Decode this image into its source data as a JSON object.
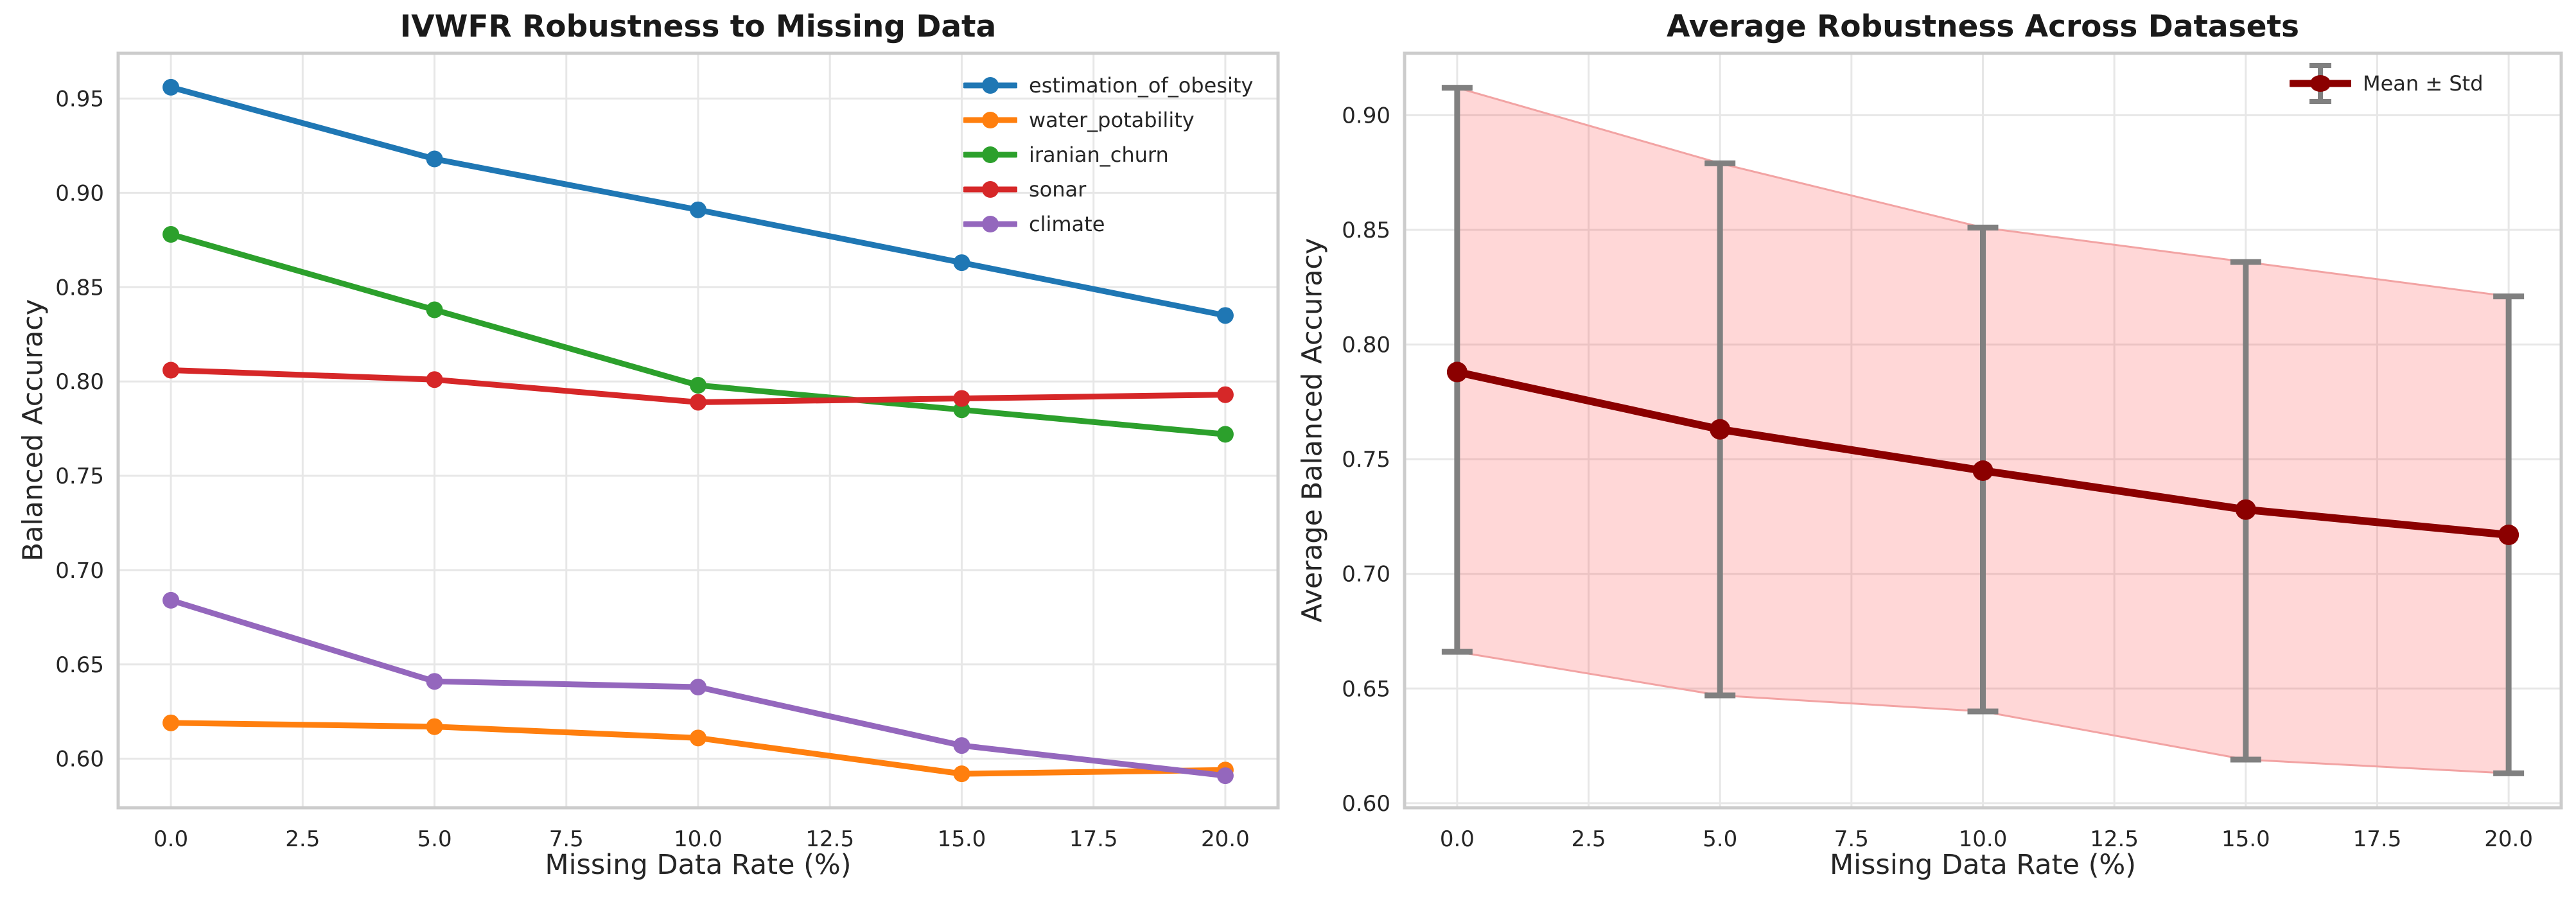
{
  "figure": {
    "background": "#ffffff",
    "theme": {
      "grid_color": "#e7e7e7",
      "spine_color": "#cccccc",
      "text_color": "#262626"
    }
  },
  "chart_data": [
    {
      "type": "line",
      "title": "IVWFR Robustness to Missing Data",
      "xlabel": "Missing Data Rate (%)",
      "ylabel": "Balanced Accuracy",
      "x": [
        0,
        5,
        10,
        15,
        20
      ],
      "xlim": [
        -1,
        21
      ],
      "ylim": [
        0.574,
        0.974
      ],
      "grid": true,
      "legend_position": "upper-right",
      "xticks": {
        "values": [
          0,
          2.5,
          5,
          7.5,
          10,
          12.5,
          15,
          17.5,
          20
        ],
        "labels": [
          "0.0",
          "2.5",
          "5.0",
          "7.5",
          "10.0",
          "12.5",
          "15.0",
          "17.5",
          "20.0"
        ]
      },
      "yticks": {
        "values": [
          0.6,
          0.65,
          0.7,
          0.75,
          0.8,
          0.85,
          0.9,
          0.95
        ],
        "labels": [
          "0.60",
          "0.65",
          "0.70",
          "0.75",
          "0.80",
          "0.85",
          "0.90",
          "0.95"
        ]
      },
      "series": [
        {
          "name": "estimation_of_obesity",
          "color": "#1f77b4",
          "values": [
            0.956,
            0.918,
            0.891,
            0.863,
            0.835
          ]
        },
        {
          "name": "water_potability",
          "color": "#ff7f0e",
          "values": [
            0.619,
            0.617,
            0.611,
            0.592,
            0.594
          ]
        },
        {
          "name": "iranian_churn",
          "color": "#2ca02c",
          "values": [
            0.878,
            0.838,
            0.798,
            0.785,
            0.772
          ]
        },
        {
          "name": "sonar",
          "color": "#d62728",
          "values": [
            0.806,
            0.801,
            0.789,
            0.791,
            0.793
          ]
        },
        {
          "name": "climate",
          "color": "#9467bd",
          "values": [
            0.684,
            0.641,
            0.638,
            0.607,
            0.591
          ]
        }
      ]
    },
    {
      "type": "line",
      "title": "Average Robustness Across Datasets",
      "xlabel": "Missing Data Rate (%)",
      "ylabel": "Average Balanced Accuracy",
      "x": [
        0,
        5,
        10,
        15,
        20
      ],
      "xlim": [
        -1,
        21
      ],
      "ylim": [
        0.598,
        0.927
      ],
      "grid": true,
      "legend_position": "upper-right",
      "xticks": {
        "values": [
          0,
          2.5,
          5,
          7.5,
          10,
          12.5,
          15,
          17.5,
          20
        ],
        "labels": [
          "0.0",
          "2.5",
          "5.0",
          "7.5",
          "10.0",
          "12.5",
          "15.0",
          "17.5",
          "20.0"
        ]
      },
      "yticks": {
        "values": [
          0.6,
          0.65,
          0.7,
          0.75,
          0.8,
          0.85,
          0.9
        ],
        "labels": [
          "0.60",
          "0.65",
          "0.70",
          "0.75",
          "0.80",
          "0.85",
          "0.90"
        ]
      },
      "series": [
        {
          "name": "Mean ± Std",
          "color": "#8b0000",
          "values": [
            0.788,
            0.763,
            0.745,
            0.728,
            0.717
          ],
          "band_upper": [
            0.912,
            0.879,
            0.851,
            0.836,
            0.821
          ],
          "band_lower": [
            0.666,
            0.647,
            0.64,
            0.619,
            0.613
          ],
          "band_fill": "rgba(255,40,40,0.19)",
          "band_edge": "#f2a3a3",
          "errorbar_color": "#808080"
        }
      ]
    }
  ]
}
